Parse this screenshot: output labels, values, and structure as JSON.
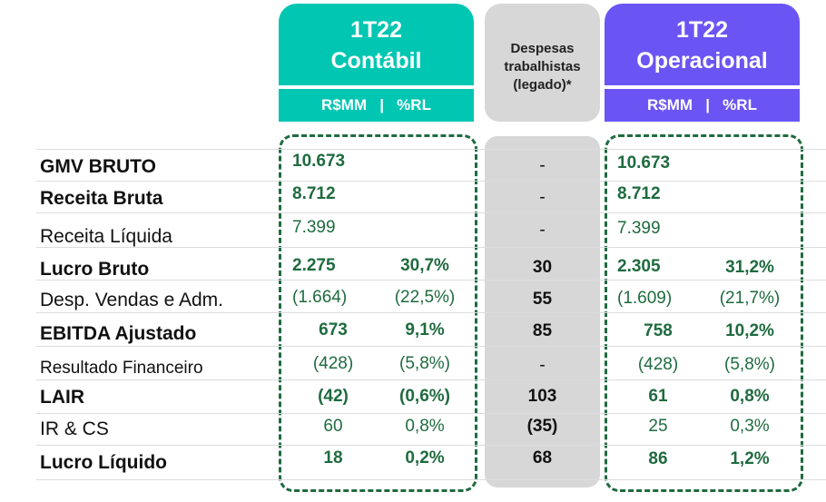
{
  "headers": {
    "contabil": {
      "line1": "1T22",
      "line2": "Contábil",
      "sub": "R$MM   |   %RL"
    },
    "despesas": {
      "line1": "Despesas",
      "line2": "trabalhistas",
      "line3": "(legado)*"
    },
    "operacional": {
      "line1": "1T22",
      "line2": "Operacional",
      "sub": "R$MM   |   %RL"
    }
  },
  "rows": [
    {
      "label": "GMV BRUTO",
      "c_val": "10.673",
      "c_pct": "",
      "desp": "-",
      "o_val": "10.673",
      "o_pct": ""
    },
    {
      "label": "Receita Bruta",
      "c_val": "8.712",
      "c_pct": "",
      "desp": "-",
      "o_val": "8.712",
      "o_pct": ""
    },
    {
      "label": "Receita Líquida",
      "c_val": "7.399",
      "c_pct": "",
      "desp": "-",
      "o_val": "7.399",
      "o_pct": ""
    },
    {
      "label": "Lucro Bruto",
      "c_val": "2.275",
      "c_pct": "30,7%",
      "desp": "30",
      "o_val": "2.305",
      "o_pct": "31,2%"
    },
    {
      "label": "Desp. Vendas e Adm.",
      "c_val": "(1.664)",
      "c_pct": "(22,5%)",
      "desp": "55",
      "o_val": "(1.609)",
      "o_pct": "(21,7%)"
    },
    {
      "label": "EBITDA Ajustado",
      "c_val": "673",
      "c_pct": "9,1%",
      "desp": "85",
      "o_val": "758",
      "o_pct": "10,2%"
    },
    {
      "label": "Resultado Financeiro",
      "c_val": "(428)",
      "c_pct": "(5,8%)",
      "desp": "-",
      "o_val": "(428)",
      "o_pct": "(5,8%)"
    },
    {
      "label": "LAIR",
      "c_val": "(42)",
      "c_pct": "(0,6%)",
      "desp": "103",
      "o_val": "61",
      "o_pct": "0,8%"
    },
    {
      "label": "IR & CS",
      "c_val": "60",
      "c_pct": "0,8%",
      "desp": "(35)",
      "o_val": "25",
      "o_pct": "0,3%"
    },
    {
      "label": "Lucro Líquido",
      "c_val": "18",
      "c_pct": "0,2%",
      "desp": "68",
      "o_val": "86",
      "o_pct": "1,2%"
    }
  ],
  "colors": {
    "teal": "#00c6b2",
    "purple": "#6a55f4",
    "gray": "#d7d7d7",
    "green": "#1f6b3f"
  }
}
